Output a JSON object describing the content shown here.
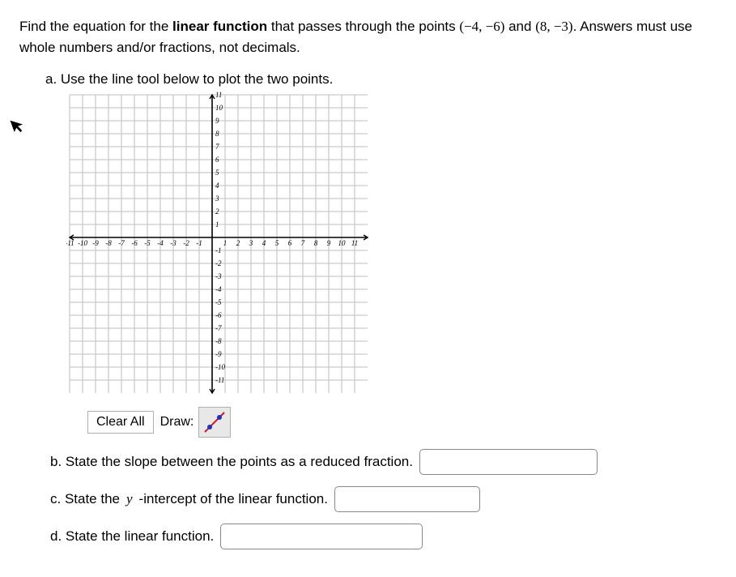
{
  "question": {
    "prefix": "Find the equation for the ",
    "bold1": "linear function",
    "mid1": " that passes through the points ",
    "point1": "(−4, −6)",
    "mid2": " and ",
    "point2": "(8, −3)",
    "suffix": ". Answers must use whole numbers and/or fractions, not decimals."
  },
  "parts": {
    "a": {
      "label": "a.  Use the line tool below to plot the two points."
    },
    "b": {
      "prefix": "b.  State the slope between the points as a reduced fraction."
    },
    "c": {
      "prefix": "c.  State the ",
      "var": "y",
      "suffix": "-intercept of the linear function."
    },
    "d": {
      "prefix": "d.  State the linear function."
    }
  },
  "toolbar": {
    "clear": "Clear All",
    "draw": "Draw:"
  },
  "graph": {
    "min": -11,
    "max": 11,
    "cell": 16,
    "size": 368,
    "axis_color": "#000000",
    "grid_color": "#bfbfbf",
    "label_color": "#000000",
    "label_fontsize": 9,
    "background": "#ffffff"
  },
  "tool_icon": {
    "line_color": "#d01818",
    "dot_color": "#2030c0"
  },
  "inputs": {
    "b": "",
    "c": "",
    "d": ""
  }
}
